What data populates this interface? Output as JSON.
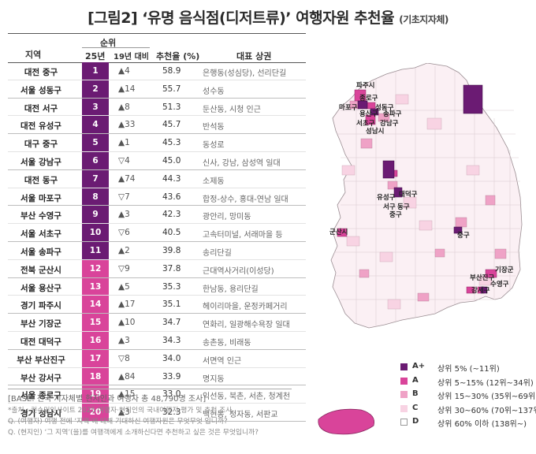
{
  "title": {
    "main": "[그림2] ‘유명 음식점(디저트류)’ 여행자원 추천율",
    "sub": "(기초지자체)"
  },
  "table": {
    "headers": {
      "region": "지역",
      "rank_group": "순위",
      "rank_25": "25년",
      "vs_19": "19년 대비",
      "rate": "추천율 (%)",
      "spots": "대표 상권"
    },
    "rows": [
      {
        "region": "대전 중구",
        "rank": "1",
        "change": "▲4",
        "rate": "58.9",
        "spots": "은행동(성심당), 선리단길",
        "grade": "A+"
      },
      {
        "region": "서울 성동구",
        "rank": "2",
        "change": "▲14",
        "rate": "55.7",
        "spots": "성수동",
        "grade": "A+"
      },
      {
        "region": "대전 서구",
        "rank": "3",
        "change": "▲8",
        "rate": "51.3",
        "spots": "둔산동, 시청 인근",
        "grade": "A+"
      },
      {
        "region": "대전 유성구",
        "rank": "4",
        "change": "▲33",
        "rate": "45.7",
        "spots": "반석동",
        "grade": "A+"
      },
      {
        "region": "대구 중구",
        "rank": "5",
        "change": "▲1",
        "rate": "45.3",
        "spots": "동성로",
        "grade": "A+"
      },
      {
        "region": "서울 강남구",
        "rank": "6",
        "change": "▽4",
        "rate": "45.0",
        "spots": "신사, 강남, 삼성역 일대",
        "grade": "A+"
      },
      {
        "region": "대전 동구",
        "rank": "7",
        "change": "▲74",
        "rate": "44.3",
        "spots": "소제동",
        "grade": "A+"
      },
      {
        "region": "서울 마포구",
        "rank": "8",
        "change": "▽7",
        "rate": "43.6",
        "spots": "합정-상수, 홍대-연남 일대",
        "grade": "A+"
      },
      {
        "region": "부산 수영구",
        "rank": "9",
        "change": "▲3",
        "rate": "42.3",
        "spots": "광안리, 망미동",
        "grade": "A+"
      },
      {
        "region": "서울 서초구",
        "rank": "10",
        "change": "▽6",
        "rate": "40.5",
        "spots": "고속터미널, 서래마을 등",
        "grade": "A+"
      },
      {
        "region": "서울 송파구",
        "rank": "11",
        "change": "▲2",
        "rate": "39.8",
        "spots": "송리단길",
        "grade": "A+"
      },
      {
        "region": "전북 군산시",
        "rank": "12",
        "change": "▽9",
        "rate": "37.8",
        "spots": "근대역사거리(이성당)",
        "grade": "A"
      },
      {
        "region": "서울 용산구",
        "rank": "13",
        "change": "▲5",
        "rate": "35.3",
        "spots": "한남동, 용리단길",
        "grade": "A"
      },
      {
        "region": "경기 파주시",
        "rank": "14",
        "change": "▲17",
        "rate": "35.1",
        "spots": "헤이리마을, 운정카페거리",
        "grade": "A"
      },
      {
        "region": "부산 기장군",
        "rank": "15",
        "change": "▲10",
        "rate": "34.7",
        "spots": "연화리, 일광해수욕장 일대",
        "grade": "A"
      },
      {
        "region": "대전 대덕구",
        "rank": "16",
        "change": "▲3",
        "rate": "34.3",
        "spots": "송촌동, 비래동",
        "grade": "A"
      },
      {
        "region": "부산 부산진구",
        "rank": "17",
        "change": "▽8",
        "rate": "34.0",
        "spots": "서면역 인근",
        "grade": "A"
      },
      {
        "region": "부산 강서구",
        "rank": "18",
        "change": "▲84",
        "rate": "33.9",
        "spots": "명지동",
        "grade": "A"
      },
      {
        "region": "서울 종로구",
        "rank": "19",
        "change": "▲15",
        "rate": "33.0",
        "spots": "익선동, 북촌, 서촌, 청계천",
        "grade": "A"
      },
      {
        "region": "경기 성남시",
        "rank": "20",
        "change": "▲3",
        "rate": "32.3",
        "spots": "백현동, 정자동, 서판교",
        "grade": "A"
      }
    ]
  },
  "base_note": "[BASE: 전국 지자체별 현지인과 여행자 총 48,790명 조사]",
  "footnotes": [
    "*출처 : 컨슈머인사이트 2025 여행자·현지인의 국내여행지 평가 및 추천 조사",
    "Q. (여행자) 여행 전에 ‘지역’에 대해 기대하신 여행자원은 무엇무엇 입니까?",
    "Q. (현지인) ‘그 지역’(을)를 여행객에게 소개하신다면 추천하고 싶은 것은 무엇입니까?"
  ],
  "map": {
    "labels": [
      {
        "text": "파주시"
      },
      {
        "text": "종로구"
      },
      {
        "text": "마포구"
      },
      {
        "text": "성동구"
      },
      {
        "text": "용산구"
      },
      {
        "text": "송파구"
      },
      {
        "text": "서초구"
      },
      {
        "text": "강남구"
      },
      {
        "text": "성남시"
      },
      {
        "text": "유성구"
      },
      {
        "text": "대덕구"
      },
      {
        "text": "서구"
      },
      {
        "text": "동구"
      },
      {
        "text": "중구"
      },
      {
        "text": "군산시"
      },
      {
        "text": "중구"
      },
      {
        "text": "기장군"
      },
      {
        "text": "부산진구"
      },
      {
        "text": "수영구"
      },
      {
        "text": "강서구"
      }
    ]
  },
  "legend": [
    {
      "grade": "A+",
      "desc": "상위 5% (~11위)",
      "color": "#6b1b73"
    },
    {
      "grade": "A",
      "desc": "상위 5~15% (12위~34위)",
      "color": "#d9449a"
    },
    {
      "grade": "B",
      "desc": "상위 15~30% (35위~69위)",
      "color": "#efa2c6"
    },
    {
      "grade": "C",
      "desc": "상위 30~60% (70위~137위)",
      "color": "#f8d3e3"
    },
    {
      "grade": "D",
      "desc": "상위 60% 이하 (138위~)",
      "color": "#ffffff"
    }
  ],
  "colors": {
    "aplus": "#6b1b73",
    "a": "#d9449a",
    "b": "#efa2c6",
    "c": "#f8d3e3",
    "d": "#ffffff"
  }
}
